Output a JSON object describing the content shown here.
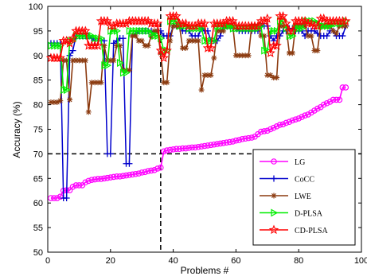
{
  "chart_data": {
    "type": "line",
    "xlabel": "Problems #",
    "ylabel": "Accuracy (%)",
    "xlim": [
      0,
      100
    ],
    "ylim": [
      50,
      100
    ],
    "xticks": [
      "0",
      "20",
      "40",
      "60",
      "80",
      "100"
    ],
    "yticks": [
      "50",
      "55",
      "60",
      "65",
      "70",
      "75",
      "80",
      "85",
      "90",
      "95",
      "100"
    ],
    "grid": false,
    "legend_position": "bottom-right",
    "reference_lines": {
      "x": 36,
      "y": 70
    },
    "x": [
      1,
      2,
      3,
      4,
      5,
      6,
      7,
      8,
      9,
      10,
      11,
      12,
      13,
      14,
      15,
      16,
      17,
      18,
      19,
      20,
      21,
      22,
      23,
      24,
      25,
      26,
      27,
      28,
      29,
      30,
      31,
      32,
      33,
      34,
      35,
      36,
      37,
      38,
      39,
      40,
      41,
      42,
      43,
      44,
      45,
      46,
      47,
      48,
      49,
      50,
      51,
      52,
      53,
      54,
      55,
      56,
      57,
      58,
      59,
      60,
      61,
      62,
      63,
      64,
      65,
      66,
      67,
      68,
      69,
      70,
      71,
      72,
      73,
      74,
      75,
      76,
      77,
      78,
      79,
      80,
      81,
      82,
      83,
      84,
      85,
      86,
      87,
      88,
      89,
      90,
      91,
      92,
      93,
      94,
      95
    ],
    "series": [
      {
        "name": "LG",
        "color": "#ff00ff",
        "marker": "circle",
        "values": [
          61.0,
          61.0,
          61.0,
          61.3,
          62.5,
          62.6,
          62.6,
          63.3,
          63.6,
          63.6,
          63.6,
          64.2,
          64.5,
          64.7,
          64.8,
          64.9,
          64.9,
          65.0,
          65.1,
          65.2,
          65.3,
          65.4,
          65.4,
          65.5,
          65.6,
          65.7,
          65.8,
          65.9,
          66.0,
          66.2,
          66.3,
          66.5,
          66.6,
          66.7,
          67.0,
          67.2,
          70.5,
          70.7,
          70.8,
          70.9,
          71.0,
          71.0,
          71.1,
          71.1,
          71.2,
          71.3,
          71.3,
          71.4,
          71.5,
          71.6,
          71.7,
          71.8,
          71.9,
          72.0,
          72.1,
          72.2,
          72.3,
          72.4,
          72.5,
          72.7,
          72.8,
          73.0,
          73.1,
          73.2,
          73.3,
          73.5,
          74.0,
          74.5,
          74.6,
          74.7,
          75.0,
          75.3,
          75.6,
          75.9,
          76.0,
          76.3,
          76.5,
          76.8,
          77.0,
          77.2,
          77.5,
          77.8,
          78.0,
          78.4,
          78.8,
          79.2,
          79.5,
          80.0,
          80.3,
          80.6,
          81.0,
          81.0,
          81.0,
          83.5,
          83.5
        ]
      },
      {
        "name": "CoCC",
        "color": "#0000cc",
        "marker": "plus",
        "values": [
          92.5,
          92.5,
          92.5,
          92.5,
          61.0,
          61.0,
          90.0,
          91.0,
          94.0,
          94.0,
          94.0,
          94.0,
          94.0,
          93.5,
          93.0,
          93.0,
          93.0,
          93.0,
          70.0,
          70.0,
          92.5,
          93.0,
          93.5,
          93.5,
          68.0,
          68.0,
          94.0,
          94.5,
          95.0,
          95.0,
          95.0,
          95.0,
          95.0,
          94.5,
          95.0,
          95.0,
          94.0,
          94.0,
          94.0,
          96.0,
          96.0,
          96.0,
          95.0,
          95.0,
          95.0,
          94.0,
          94.0,
          94.0,
          95.5,
          95.0,
          95.0,
          93.0,
          93.0,
          93.0,
          94.0,
          96.0,
          96.0,
          96.0,
          95.5,
          95.5,
          95.0,
          95.0,
          95.0,
          95.0,
          95.0,
          95.0,
          95.0,
          96.0,
          96.0,
          96.0,
          94.0,
          93.0,
          94.0,
          94.0,
          95.0,
          95.0,
          95.5,
          95.5,
          95.0,
          95.0,
          95.0,
          94.0,
          95.0,
          95.0,
          95.0,
          94.5,
          94.0,
          94.0,
          94.0,
          95.0,
          95.0,
          94.0,
          94.0,
          94.0,
          96.0
        ]
      },
      {
        "name": "LWE",
        "color": "#8b3a0f",
        "marker": "star",
        "values": [
          80.5,
          80.5,
          80.5,
          80.8,
          89.0,
          89.0,
          81.0,
          89.0,
          89.0,
          89.0,
          89.0,
          89.0,
          78.5,
          84.5,
          84.5,
          84.5,
          84.5,
          92.0,
          89.0,
          89.0,
          89.0,
          92.0,
          92.0,
          87.0,
          87.0,
          87.0,
          94.0,
          94.0,
          93.0,
          93.0,
          92.0,
          92.0,
          94.0,
          95.0,
          95.0,
          90.5,
          84.5,
          84.5,
          93.0,
          96.0,
          96.0,
          96.0,
          91.5,
          91.5,
          93.0,
          93.0,
          93.0,
          93.0,
          83.0,
          86.0,
          86.0,
          86.0,
          89.5,
          95.0,
          95.0,
          95.0,
          96.0,
          96.0,
          96.0,
          90.0,
          90.0,
          90.0,
          90.0,
          90.0,
          96.0,
          96.0,
          96.0,
          94.0,
          94.0,
          86.0,
          86.0,
          85.5,
          85.5,
          96.0,
          96.0,
          96.0,
          90.5,
          90.5,
          96.0,
          96.0,
          96.0,
          96.0,
          94.0,
          94.0,
          91.0,
          91.0,
          96.0,
          96.0,
          96.0,
          96.0,
          95.0,
          94.5,
          96.0,
          96.0,
          96.0
        ]
      },
      {
        "name": "D-PLSA",
        "color": "#00ee00",
        "marker": "triangle-right",
        "values": [
          92.0,
          92.0,
          92.0,
          92.0,
          83.0,
          83.0,
          93.0,
          93.0,
          94.0,
          94.0,
          94.0,
          94.0,
          94.0,
          94.0,
          93.5,
          93.5,
          93.5,
          88.0,
          88.0,
          95.0,
          95.0,
          95.0,
          88.5,
          86.5,
          86.5,
          95.0,
          95.0,
          95.0,
          95.0,
          95.0,
          95.0,
          95.0,
          94.5,
          94.0,
          94.0,
          93.5,
          91.0,
          91.0,
          97.0,
          97.0,
          97.0,
          96.0,
          96.0,
          96.0,
          95.5,
          95.5,
          95.5,
          95.5,
          95.5,
          93.0,
          93.0,
          93.0,
          93.0,
          96.0,
          96.0,
          96.0,
          96.0,
          96.0,
          95.5,
          95.5,
          95.5,
          95.5,
          95.5,
          95.5,
          95.5,
          95.5,
          95.5,
          96.0,
          91.0,
          91.0,
          95.0,
          95.0,
          95.0,
          97.0,
          97.0,
          95.5,
          94.0,
          94.0,
          95.5,
          95.5,
          95.5,
          97.0,
          97.0,
          97.0,
          97.0,
          96.5,
          96.0,
          96.0,
          96.0,
          96.0,
          96.5,
          96.5,
          96.5,
          96.5,
          97.0
        ]
      },
      {
        "name": "CD-PLSA",
        "color": "#ff0000",
        "marker": "pentagram",
        "values": [
          89.5,
          89.5,
          89.5,
          89.5,
          93.0,
          93.0,
          92.5,
          93.5,
          95.0,
          95.0,
          95.0,
          95.0,
          92.0,
          92.0,
          92.0,
          92.0,
          97.0,
          97.0,
          97.0,
          96.0,
          96.0,
          96.5,
          96.5,
          96.5,
          96.5,
          97.0,
          97.0,
          97.0,
          97.0,
          97.0,
          97.0,
          97.0,
          96.5,
          96.5,
          96.5,
          91.0,
          89.5,
          91.0,
          98.0,
          98.0,
          98.0,
          96.5,
          96.5,
          96.5,
          96.0,
          96.0,
          96.0,
          96.5,
          96.5,
          96.5,
          91.5,
          91.5,
          96.5,
          96.5,
          96.5,
          96.5,
          97.0,
          97.0,
          97.0,
          96.0,
          96.0,
          96.0,
          96.0,
          96.0,
          96.0,
          96.0,
          96.0,
          97.0,
          97.0,
          97.5,
          90.5,
          92.0,
          92.0,
          98.0,
          98.0,
          96.5,
          95.0,
          95.0,
          97.0,
          97.0,
          97.0,
          97.0,
          96.5,
          96.5,
          96.0,
          96.0,
          97.5,
          97.5,
          97.0,
          97.0,
          97.0,
          97.0,
          97.0,
          97.0,
          97.0
        ]
      }
    ]
  }
}
